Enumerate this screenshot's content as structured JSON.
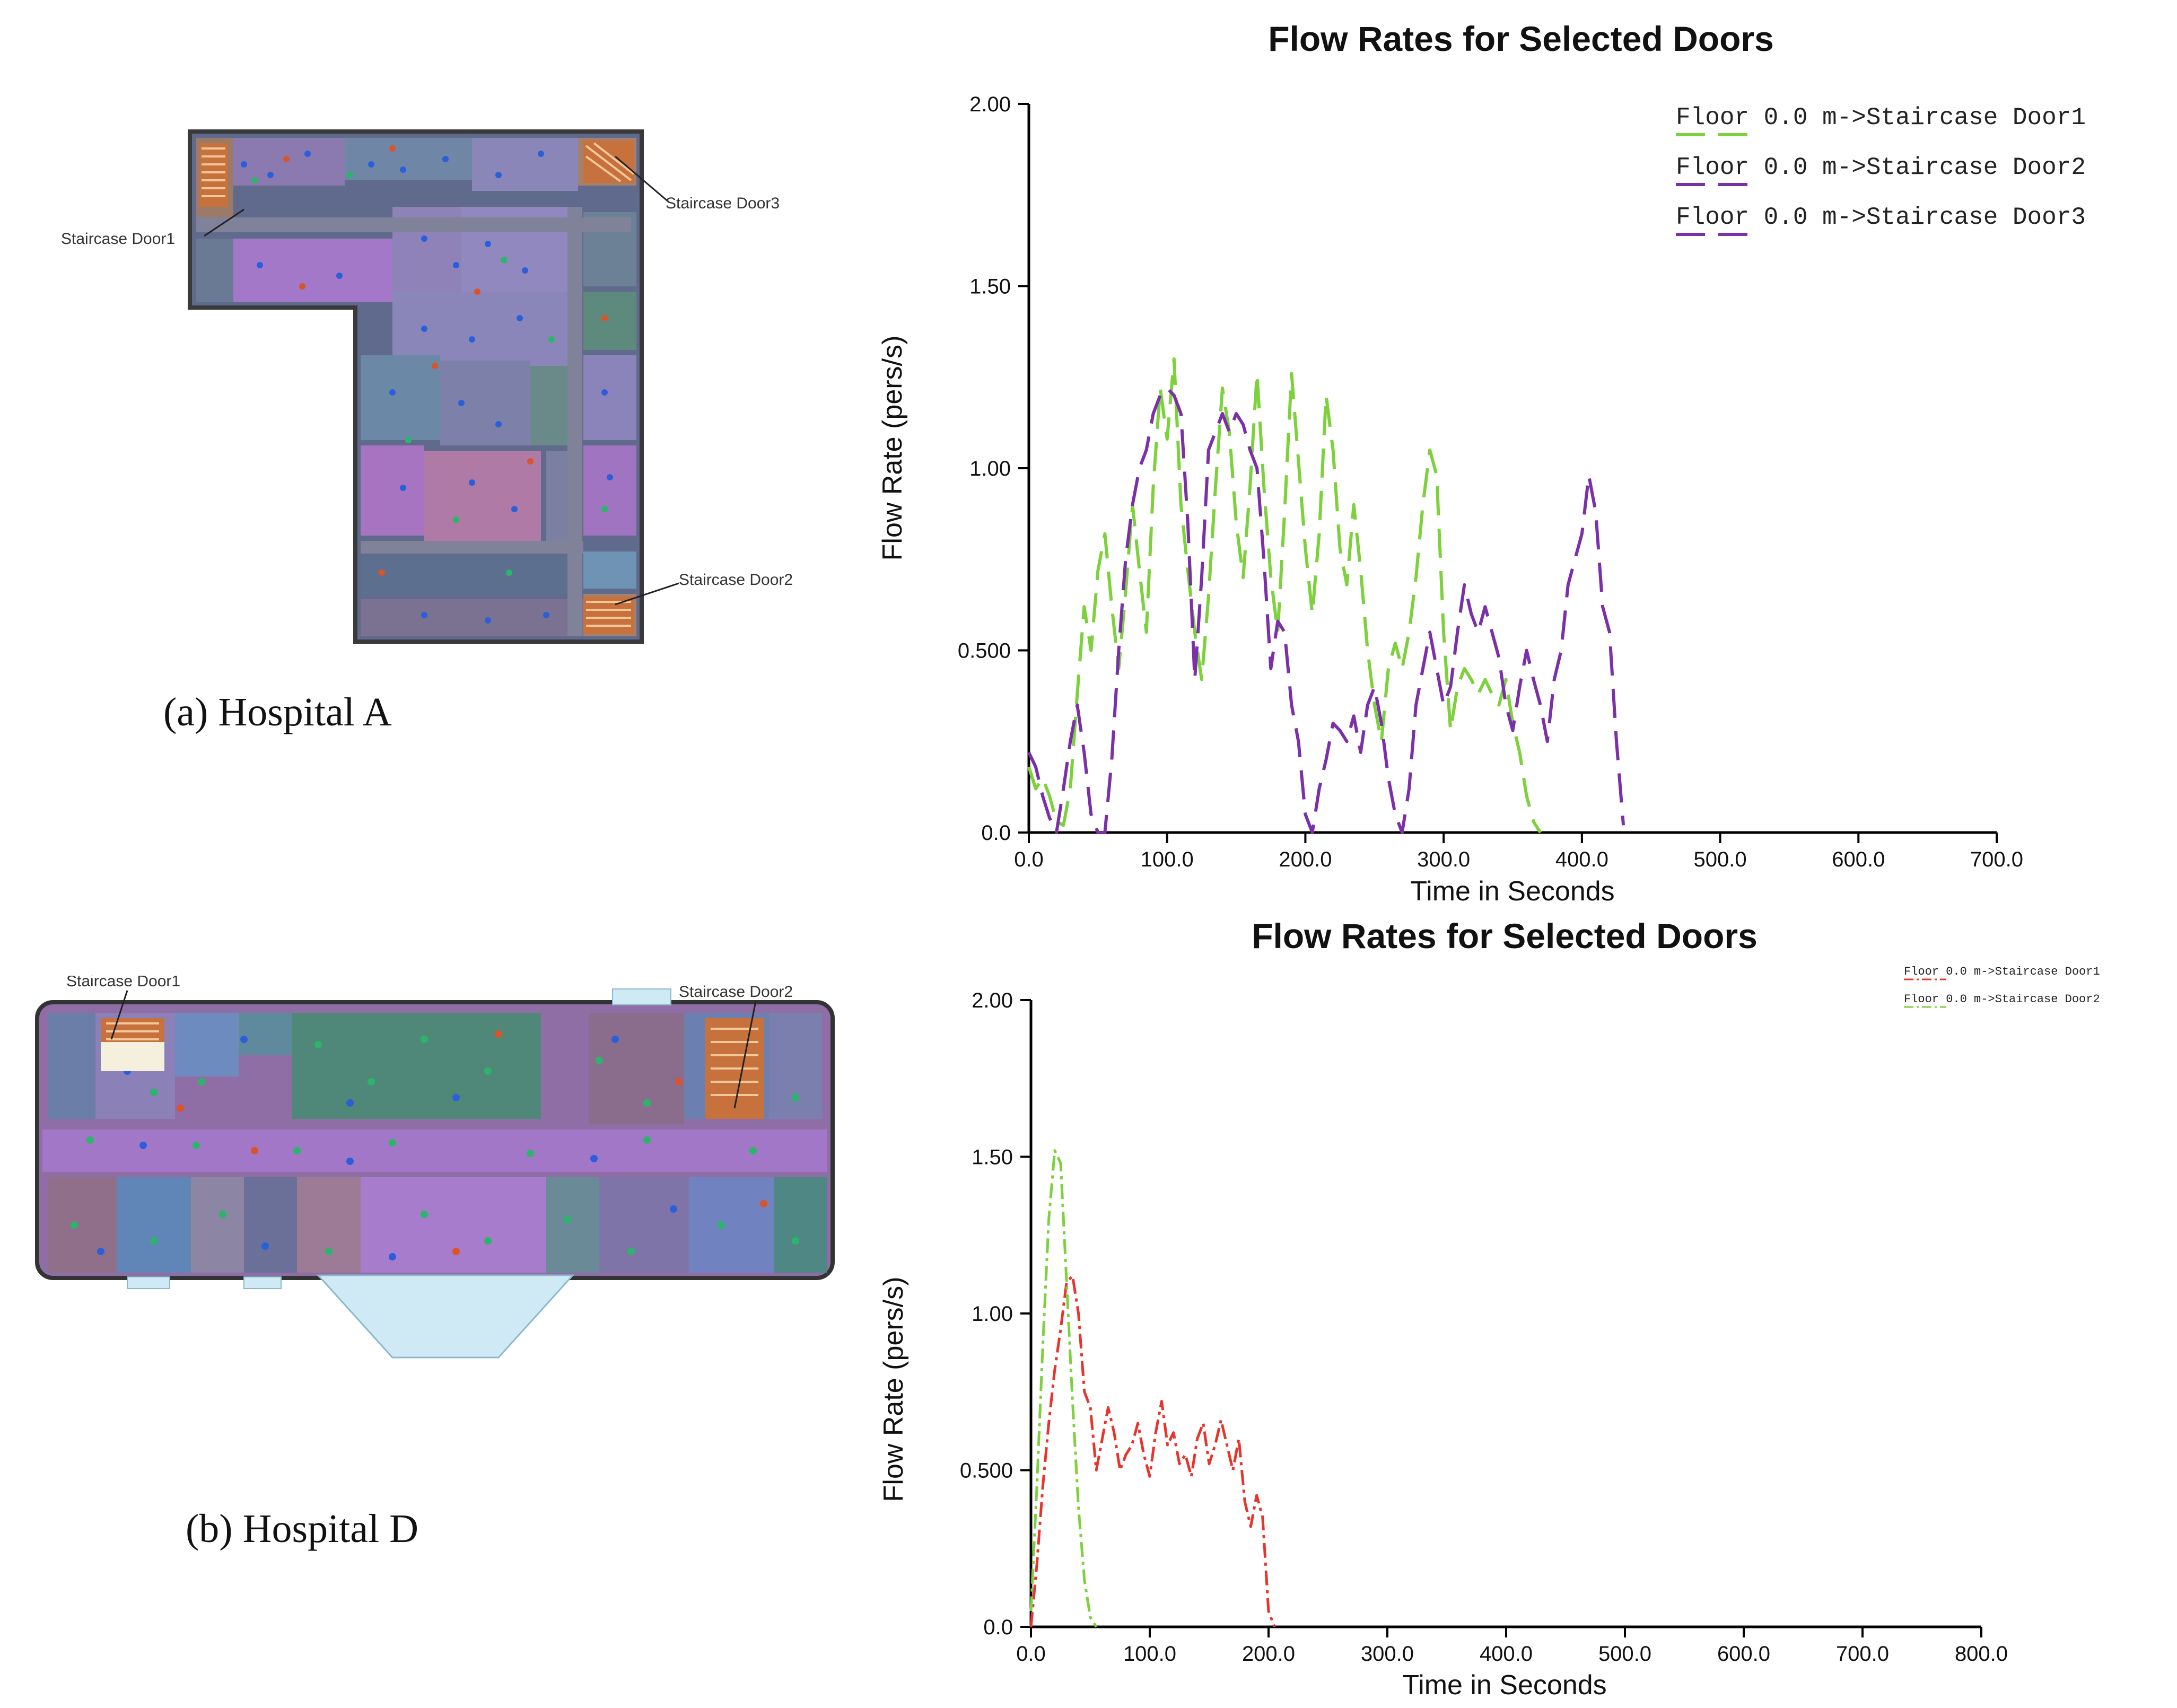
{
  "panel_a": {
    "caption": "(a) Hospital A",
    "door_labels": [
      "Staircase Door1",
      "Staircase Door3",
      "Staircase Door2"
    ]
  },
  "panel_b": {
    "caption": "(b) Hospital D",
    "door_labels": [
      "Staircase Door1",
      "Staircase Door2"
    ]
  },
  "chart_data": [
    {
      "type": "line",
      "title": "Flow Rates for Selected Doors",
      "xlabel": "Time in Seconds",
      "ylabel": "Flow Rate (pers/s)",
      "xlim": [
        0,
        700
      ],
      "ylim": [
        0,
        2
      ],
      "xticks": [
        "0.0",
        "100.0",
        "200.0",
        "300.0",
        "400.0",
        "500.0",
        "600.0",
        "700.0"
      ],
      "yticks": [
        "0.0",
        "0.500",
        "1.00",
        "1.50",
        "2.00"
      ],
      "legend_position": "top-right",
      "series": [
        {
          "name": "Floor 0.0 m->Staircase Door1",
          "color": "#7dd13c",
          "dash": "dashed",
          "x": [
            0,
            5,
            10,
            15,
            20,
            25,
            30,
            35,
            40,
            45,
            50,
            55,
            60,
            65,
            70,
            75,
            80,
            85,
            90,
            95,
            100,
            105,
            110,
            115,
            120,
            125,
            130,
            135,
            140,
            145,
            150,
            155,
            160,
            165,
            170,
            175,
            180,
            185,
            190,
            195,
            200,
            205,
            210,
            215,
            220,
            225,
            230,
            235,
            240,
            245,
            250,
            255,
            260,
            265,
            270,
            275,
            280,
            285,
            290,
            295,
            300,
            305,
            310,
            315,
            320,
            325,
            330,
            335,
            340,
            345,
            350,
            355,
            360,
            365,
            370
          ],
          "y": [
            0.18,
            0.12,
            0.15,
            0.1,
            0.03,
            0.02,
            0.12,
            0.38,
            0.62,
            0.5,
            0.72,
            0.82,
            0.62,
            0.45,
            0.66,
            0.9,
            0.72,
            0.55,
            0.95,
            1.22,
            1.08,
            1.3,
            0.9,
            0.72,
            0.55,
            0.42,
            0.65,
            0.95,
            1.22,
            1.1,
            0.85,
            0.7,
            0.95,
            1.26,
            0.95,
            0.7,
            0.55,
            0.88,
            1.26,
            1.02,
            0.78,
            0.6,
            0.82,
            1.2,
            1.05,
            0.78,
            0.68,
            0.9,
            0.72,
            0.5,
            0.35,
            0.25,
            0.45,
            0.52,
            0.45,
            0.55,
            0.7,
            0.9,
            1.05,
            0.98,
            0.55,
            0.28,
            0.4,
            0.45,
            0.42,
            0.38,
            0.42,
            0.38,
            0.35,
            0.42,
            0.3,
            0.22,
            0.1,
            0.03,
            0.0
          ]
        },
        {
          "name": "Floor 0.0 m->Staircase Door2",
          "color": "#7b2fa8",
          "dash": "dashed",
          "x": [
            0,
            5,
            10,
            15,
            20,
            25,
            30,
            35,
            40,
            45,
            50,
            55,
            60,
            65,
            70,
            75,
            80,
            85,
            90,
            95,
            100,
            105,
            110,
            115,
            120,
            125,
            130,
            135,
            140,
            145,
            150,
            155,
            160,
            165,
            170,
            175,
            180,
            185,
            190,
            195,
            200,
            205,
            210,
            215,
            220,
            225,
            230,
            235,
            240,
            245,
            250,
            255,
            260,
            265,
            270,
            275,
            280,
            285,
            290,
            295,
            300,
            305,
            310,
            315,
            320,
            325,
            330,
            335,
            340,
            345,
            350,
            355,
            360,
            365,
            370,
            375,
            380,
            385,
            390,
            395,
            400,
            405,
            410,
            415,
            420,
            425,
            430
          ],
          "y": [
            0.22,
            0.18,
            0.1,
            0.04,
            0.0,
            0.12,
            0.25,
            0.35,
            0.22,
            0.05,
            0.0,
            0.0,
            0.2,
            0.5,
            0.75,
            0.9,
            1.0,
            1.05,
            1.15,
            1.2,
            1.22,
            1.2,
            1.15,
            0.85,
            0.42,
            0.7,
            1.05,
            1.1,
            1.15,
            1.1,
            1.15,
            1.12,
            1.05,
            1.0,
            0.75,
            0.45,
            0.58,
            0.55,
            0.35,
            0.25,
            0.05,
            0.0,
            0.12,
            0.2,
            0.3,
            0.28,
            0.25,
            0.32,
            0.22,
            0.35,
            0.4,
            0.3,
            0.15,
            0.05,
            0.0,
            0.12,
            0.35,
            0.45,
            0.55,
            0.45,
            0.35,
            0.4,
            0.55,
            0.68,
            0.6,
            0.55,
            0.62,
            0.55,
            0.48,
            0.35,
            0.28,
            0.4,
            0.5,
            0.42,
            0.35,
            0.25,
            0.42,
            0.5,
            0.68,
            0.75,
            0.82,
            0.98,
            0.88,
            0.62,
            0.55,
            0.25,
            0.02
          ]
        },
        {
          "name": "Floor 0.0 m->Staircase Door3",
          "color": "#7b2fa8",
          "dash": "dashed",
          "x": [],
          "y": []
        }
      ]
    },
    {
      "type": "line",
      "title": "Flow Rates for Selected Doors",
      "xlabel": "Time in Seconds",
      "ylabel": "Flow Rate (pers/s)",
      "xlim": [
        0,
        800
      ],
      "ylim": [
        0,
        2
      ],
      "xticks": [
        "0.0",
        "100.0",
        "200.0",
        "300.0",
        "400.0",
        "500.0",
        "600.0",
        "700.0",
        "800.0"
      ],
      "yticks": [
        "0.0",
        "0.500",
        "1.00",
        "1.50",
        "2.00"
      ],
      "legend_position": "top-right",
      "series": [
        {
          "name": "Floor 0.0 m->Staircase Door1",
          "color": "#e8342c",
          "dash": "dashdot",
          "x": [
            0,
            5,
            10,
            15,
            20,
            25,
            30,
            35,
            40,
            45,
            50,
            55,
            60,
            65,
            70,
            75,
            80,
            85,
            90,
            95,
            100,
            105,
            110,
            115,
            120,
            125,
            130,
            135,
            140,
            145,
            150,
            155,
            160,
            165,
            170,
            175,
            180,
            185,
            190,
            195,
            200,
            205
          ],
          "y": [
            0.0,
            0.2,
            0.45,
            0.65,
            0.82,
            0.95,
            1.1,
            1.12,
            1.0,
            0.75,
            0.7,
            0.5,
            0.6,
            0.7,
            0.62,
            0.5,
            0.55,
            0.58,
            0.65,
            0.55,
            0.48,
            0.62,
            0.72,
            0.58,
            0.62,
            0.52,
            0.55,
            0.48,
            0.6,
            0.65,
            0.52,
            0.58,
            0.66,
            0.58,
            0.5,
            0.6,
            0.4,
            0.32,
            0.42,
            0.35,
            0.05,
            0.0
          ]
        },
        {
          "name": "Floor 0.0 m->Staircase Door2",
          "color": "#7dd13c",
          "dash": "dashdot",
          "x": [
            0,
            5,
            10,
            15,
            20,
            25,
            30,
            35,
            40,
            45,
            50,
            55
          ],
          "y": [
            0.05,
            0.45,
            0.9,
            1.3,
            1.52,
            1.48,
            1.1,
            0.72,
            0.38,
            0.15,
            0.03,
            0.0
          ]
        }
      ]
    }
  ]
}
